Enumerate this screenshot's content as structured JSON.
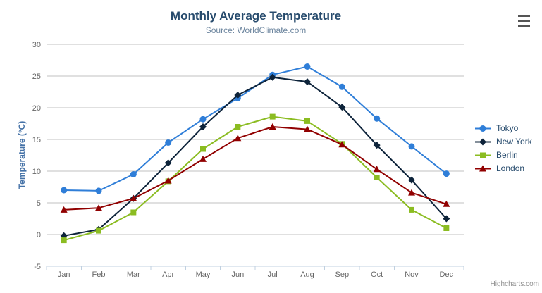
{
  "chart_data": {
    "type": "line",
    "title": "Monthly Average Temperature",
    "subtitle": "Source: WorldClimate.com",
    "categories": [
      "Jan",
      "Feb",
      "Mar",
      "Apr",
      "May",
      "Jun",
      "Jul",
      "Aug",
      "Sep",
      "Oct",
      "Nov",
      "Dec"
    ],
    "series": [
      {
        "name": "Tokyo",
        "color": "#2f7ed8",
        "marker": "circle",
        "values": [
          7.0,
          6.9,
          9.5,
          14.5,
          18.2,
          21.5,
          25.2,
          26.5,
          23.3,
          18.3,
          13.9,
          9.6
        ]
      },
      {
        "name": "New York",
        "color": "#0d233a",
        "marker": "diamond",
        "values": [
          -0.2,
          0.8,
          5.7,
          11.3,
          17.0,
          22.0,
          24.8,
          24.1,
          20.1,
          14.1,
          8.6,
          2.5
        ]
      },
      {
        "name": "Berlin",
        "color": "#8bbc21",
        "marker": "square",
        "values": [
          -0.9,
          0.6,
          3.5,
          8.4,
          13.5,
          17.0,
          18.6,
          17.9,
          14.3,
          9.0,
          3.9,
          1.0
        ]
      },
      {
        "name": "London",
        "color": "#910000",
        "marker": "triangle",
        "values": [
          3.9,
          4.2,
          5.7,
          8.5,
          11.9,
          15.2,
          17.0,
          16.6,
          14.2,
          10.3,
          6.6,
          4.8
        ]
      }
    ],
    "xlabel": "",
    "ylabel": "Temperature (°C)",
    "ylim": [
      -5,
      30
    ],
    "yticks": [
      -5,
      0,
      5,
      10,
      15,
      20,
      25,
      30
    ],
    "grid": true,
    "legend_position": "right"
  },
  "credits": {
    "label": "Highcharts.com"
  },
  "colors": {
    "title": "#274b6d",
    "subtitle": "#6d869f",
    "axis_labels": "#666666",
    "y_axis_title": "#4572a7",
    "gridline": "#c0c0c0",
    "axis_line": "#c0d0e0",
    "legend_text": "#274b6d",
    "credits": "#909090",
    "background": "#ffffff"
  }
}
